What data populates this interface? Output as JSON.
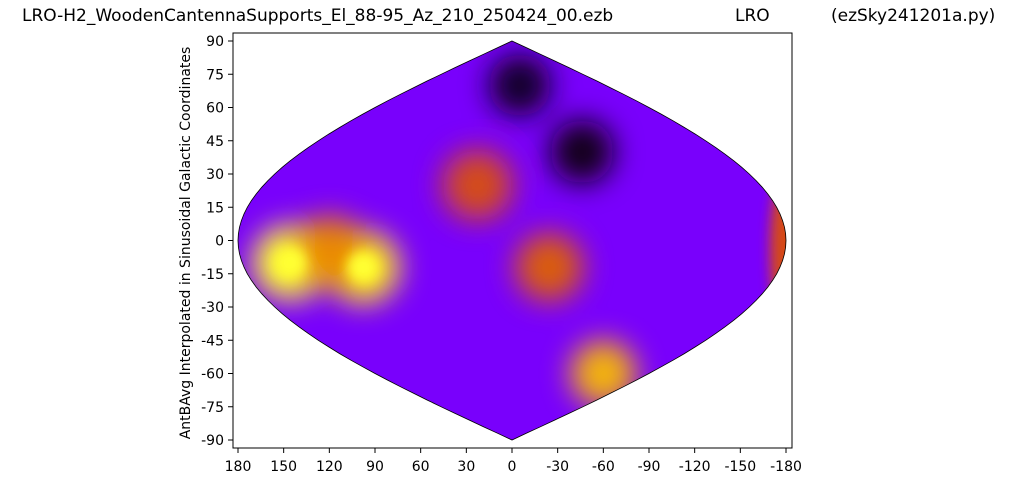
{
  "header": {
    "file": "LRO-H2_WoodenCantennaSupports_El_88-95_Az_210_250424_00.ezb",
    "observatory": "LRO",
    "program": "(ezSky241201a.py)"
  },
  "chart_data": {
    "type": "heatmap",
    "projection": "sinusoidal",
    "title": "LRO-H2_WoodenCantennaSupports_El_88-95_Az_210_250424_00.ezb",
    "xlabel": "",
    "ylabel": "AntBAvg Interpolated in Sinusoidal Galactic Coordinates",
    "x_ticks": [
      180,
      150,
      120,
      90,
      60,
      30,
      0,
      -30,
      -60,
      -90,
      -120,
      -150,
      -180
    ],
    "y_ticks": [
      90,
      75,
      60,
      45,
      30,
      15,
      0,
      -15,
      -30,
      -45,
      -60,
      -75,
      -90
    ],
    "xlim": [
      180,
      -180
    ],
    "ylim": [
      -90,
      90
    ],
    "grid": false,
    "colormap": "gnuplot",
    "colors": [
      "#000000",
      "#3a0060",
      "#7a00ff",
      "#c81e32",
      "#e06400",
      "#ffd200",
      "#ffff30"
    ],
    "features": [
      {
        "lon": 148,
        "lat": -10,
        "level": 1.0
      },
      {
        "lon": 100,
        "lat": -12,
        "level": 0.93
      },
      {
        "lon": 120,
        "lat": -5,
        "level": 0.72
      },
      {
        "lon": 25,
        "lat": 25,
        "level": 0.62
      },
      {
        "lon": -25,
        "lat": -12,
        "level": 0.66
      },
      {
        "lon": -120,
        "lat": -60,
        "level": 0.8
      },
      {
        "lon": -60,
        "lat": 40,
        "level": 0.02
      },
      {
        "lon": -15,
        "lat": 70,
        "level": 0.05
      }
    ]
  }
}
